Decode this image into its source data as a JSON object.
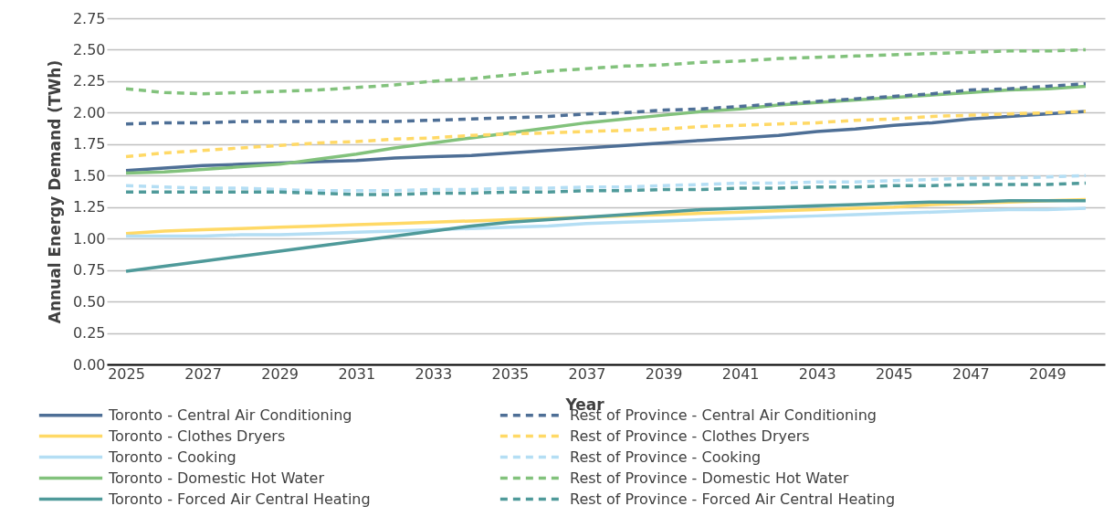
{
  "chart_data": {
    "type": "line",
    "xlabel": "Year",
    "ylabel": "Annual Energy Demand (TWh)",
    "categories": [
      "2025",
      null,
      "2027",
      null,
      "2029",
      null,
      "2031",
      null,
      "2033",
      null,
      "2035",
      null,
      "2037",
      null,
      "2039",
      null,
      "2041",
      null,
      "2043",
      null,
      "2045",
      null,
      "2047",
      null,
      "2049",
      null
    ],
    "ylim": [
      0,
      2.75
    ],
    "yticks": [
      {
        "value": 0,
        "label": "0.00"
      },
      {
        "value": 0.25,
        "label": "0.25"
      },
      {
        "value": 0.5,
        "label": "0.50"
      },
      {
        "value": 0.75,
        "label": "0.75"
      },
      {
        "value": 1,
        "label": "1.00"
      },
      {
        "value": 1.25,
        "label": "1.25"
      },
      {
        "value": 1.5,
        "label": "1.50"
      },
      {
        "value": 1.75,
        "label": "1.75"
      },
      {
        "value": 2,
        "label": "2.00"
      },
      {
        "value": 2.25,
        "label": "2.25"
      },
      {
        "value": 2.5,
        "label": "2.50"
      },
      {
        "value": 2.75,
        "label": "2.75"
      }
    ],
    "grid": "y",
    "legend": "bottom",
    "series": [
      {
        "name": "Toronto - Central Air Conditioning",
        "color": "#4e6f96",
        "line_style": "solid",
        "values": [
          1.54,
          1.56,
          1.58,
          1.59,
          1.6,
          1.61,
          1.62,
          1.64,
          1.65,
          1.66,
          1.68,
          1.7,
          1.72,
          1.74,
          1.76,
          1.78,
          1.8,
          1.82,
          1.85,
          1.87,
          1.9,
          1.92,
          1.95,
          1.97,
          1.99,
          2.01
        ]
      },
      {
        "name": "Toronto - Clothes Dryers",
        "color": "#ffd966",
        "line_style": "solid",
        "values": [
          1.04,
          1.06,
          1.07,
          1.08,
          1.09,
          1.1,
          1.11,
          1.12,
          1.13,
          1.14,
          1.15,
          1.16,
          1.17,
          1.18,
          1.19,
          1.2,
          1.21,
          1.22,
          1.23,
          1.24,
          1.25,
          1.27,
          1.28,
          1.29,
          1.3,
          1.31
        ]
      },
      {
        "name": "Toronto - Cooking",
        "color": "#b4def4",
        "line_style": "solid",
        "values": [
          1.02,
          1.02,
          1.02,
          1.03,
          1.03,
          1.04,
          1.05,
          1.06,
          1.07,
          1.08,
          1.09,
          1.1,
          1.12,
          1.13,
          1.14,
          1.15,
          1.16,
          1.17,
          1.18,
          1.19,
          1.2,
          1.21,
          1.22,
          1.23,
          1.23,
          1.24
        ]
      },
      {
        "name": "Toronto - Domestic Hot Water",
        "color": "#82c27c",
        "line_style": "solid",
        "values": [
          1.52,
          1.53,
          1.55,
          1.57,
          1.59,
          1.63,
          1.67,
          1.72,
          1.76,
          1.8,
          1.84,
          1.88,
          1.92,
          1.95,
          1.98,
          2.01,
          2.03,
          2.06,
          2.08,
          2.1,
          2.12,
          2.14,
          2.16,
          2.18,
          2.19,
          2.21
        ]
      },
      {
        "name": "Toronto - Forced Air Central Heating",
        "color": "#4f9a9a",
        "line_style": "solid",
        "values": [
          0.74,
          0.78,
          0.82,
          0.86,
          0.9,
          0.94,
          0.98,
          1.02,
          1.06,
          1.1,
          1.13,
          1.15,
          1.17,
          1.19,
          1.21,
          1.23,
          1.24,
          1.25,
          1.26,
          1.27,
          1.28,
          1.29,
          1.29,
          1.3,
          1.3,
          1.3
        ]
      },
      {
        "name": "Rest of Province - Central Air Conditioning",
        "color": "#4e6f96",
        "line_style": "dashed",
        "values": [
          1.91,
          1.92,
          1.92,
          1.93,
          1.93,
          1.93,
          1.93,
          1.93,
          1.94,
          1.95,
          1.96,
          1.97,
          1.99,
          2.0,
          2.02,
          2.03,
          2.05,
          2.07,
          2.09,
          2.11,
          2.13,
          2.15,
          2.18,
          2.19,
          2.21,
          2.23
        ]
      },
      {
        "name": "Rest of Province - Clothes Dryers",
        "color": "#ffd966",
        "line_style": "dashed",
        "values": [
          1.65,
          1.68,
          1.7,
          1.72,
          1.74,
          1.76,
          1.77,
          1.79,
          1.8,
          1.82,
          1.83,
          1.84,
          1.85,
          1.86,
          1.87,
          1.89,
          1.9,
          1.91,
          1.92,
          1.94,
          1.95,
          1.97,
          1.98,
          1.99,
          2.0,
          2.01
        ]
      },
      {
        "name": "Rest of Province - Cooking",
        "color": "#b4def4",
        "line_style": "dashed",
        "values": [
          1.42,
          1.41,
          1.4,
          1.4,
          1.39,
          1.38,
          1.38,
          1.38,
          1.39,
          1.39,
          1.4,
          1.4,
          1.41,
          1.41,
          1.42,
          1.43,
          1.44,
          1.44,
          1.45,
          1.45,
          1.46,
          1.47,
          1.48,
          1.48,
          1.49,
          1.5
        ]
      },
      {
        "name": "Rest of Province - Domestic Hot Water",
        "color": "#82c27c",
        "line_style": "dashed",
        "values": [
          2.19,
          2.16,
          2.15,
          2.16,
          2.17,
          2.18,
          2.2,
          2.22,
          2.25,
          2.27,
          2.3,
          2.33,
          2.35,
          2.37,
          2.38,
          2.4,
          2.41,
          2.43,
          2.44,
          2.45,
          2.46,
          2.47,
          2.48,
          2.49,
          2.49,
          2.5
        ]
      },
      {
        "name": "Rest of Province - Forced Air Central Heating",
        "color": "#4f9a9a",
        "line_style": "dashed",
        "values": [
          1.37,
          1.37,
          1.37,
          1.37,
          1.37,
          1.36,
          1.35,
          1.35,
          1.36,
          1.36,
          1.37,
          1.37,
          1.38,
          1.38,
          1.39,
          1.39,
          1.4,
          1.4,
          1.41,
          1.41,
          1.42,
          1.42,
          1.43,
          1.43,
          1.43,
          1.44
        ]
      }
    ]
  }
}
